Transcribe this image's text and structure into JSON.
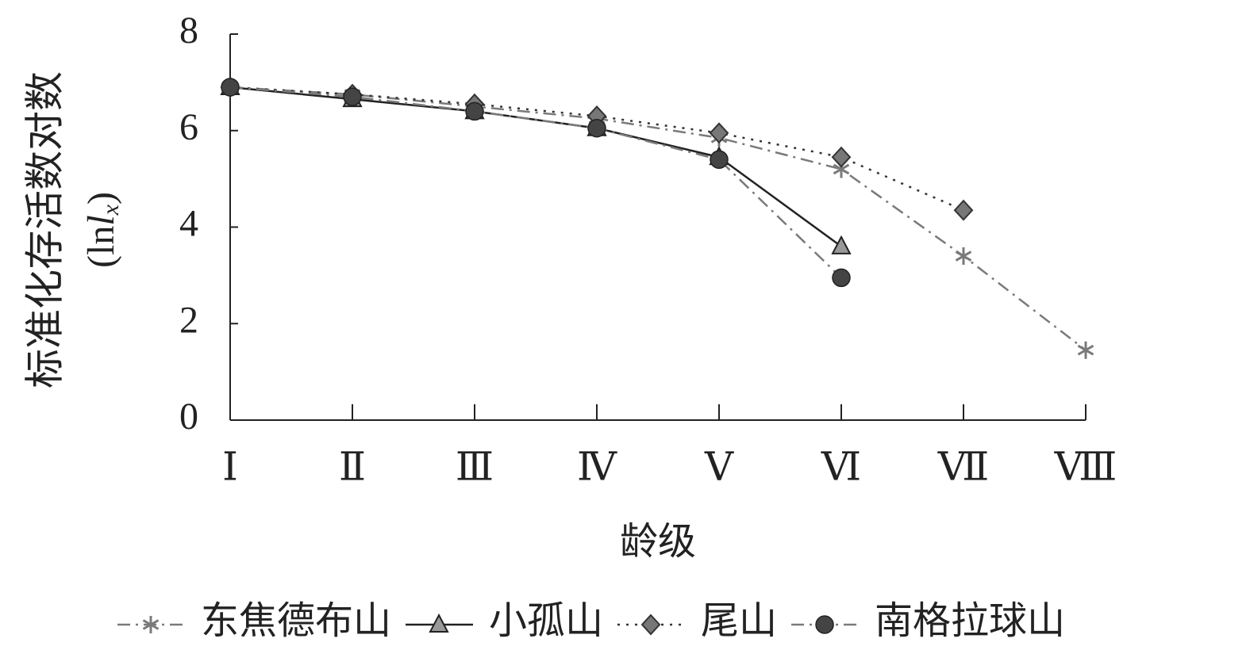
{
  "chart_data": {
    "type": "line",
    "y_label": "标准化存活数对数",
    "y_label_unit": {
      "prefix": "(ln",
      "var": "l",
      "sub": "x",
      "suffix": ")"
    },
    "x_label": "龄级",
    "categories": [
      "Ⅰ",
      "Ⅱ",
      "Ⅲ",
      "Ⅳ",
      "Ⅴ",
      "Ⅵ",
      "Ⅶ",
      "Ⅷ"
    ],
    "ylim": [
      0,
      8
    ],
    "yticks": [
      0,
      2,
      4,
      6,
      8
    ],
    "legend": "bottom",
    "series": [
      {
        "name": "东焦德布山",
        "color": "#7a7a7a",
        "dash": "dashdot",
        "marker": "star",
        "values": [
          6.9,
          6.75,
          6.5,
          6.25,
          5.85,
          5.2,
          3.4,
          1.45
        ]
      },
      {
        "name": "小孤山",
        "color": "#222222",
        "dash": "solid",
        "marker": "triangle",
        "values": [
          6.9,
          6.65,
          6.4,
          6.05,
          5.45,
          3.6,
          null,
          null
        ]
      },
      {
        "name": "尾山",
        "color": "#333333",
        "dash": "dot",
        "marker": "diamond",
        "values": [
          6.9,
          6.75,
          6.55,
          6.3,
          5.95,
          5.45,
          4.35,
          null
        ]
      },
      {
        "name": "南格拉球山",
        "color": "#7a7a7a",
        "dash": "dashdot",
        "marker": "circle",
        "values": [
          6.9,
          6.7,
          6.4,
          6.05,
          5.4,
          2.95,
          null,
          null
        ]
      }
    ]
  }
}
